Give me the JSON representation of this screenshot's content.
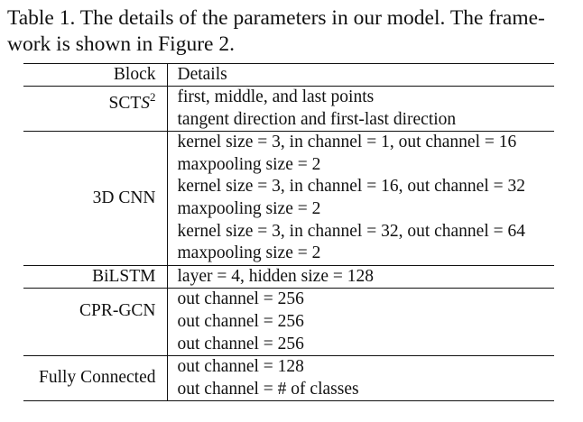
{
  "caption": {
    "line1": "Table 1. The details of the parameters in our model. The frame-",
    "line2": "work is shown in Figure 2."
  },
  "header": {
    "block": "Block",
    "details": "Details"
  },
  "rows": [
    {
      "block_prefix": "SCT",
      "block_italic": "S",
      "block_sup": "2",
      "details": [
        "first, middle, and last points",
        "tangent direction and first-last direction"
      ]
    },
    {
      "block": "3D CNN",
      "details": [
        "kernel size = 3, in channel = 1, out channel = 16",
        "maxpooling size = 2",
        "kernel size = 3, in channel = 16, out channel = 32",
        "maxpooling size = 2",
        "kernel size = 3, in channel = 32, out channel = 64",
        "maxpooling size = 2"
      ]
    },
    {
      "block": "BiLSTM",
      "details": [
        "layer = 4, hidden size = 128"
      ]
    },
    {
      "block": "CPR-GCN",
      "details": [
        "out channel = 256",
        "out channel = 256",
        "out channel = 256"
      ]
    },
    {
      "block": "Fully Connected",
      "details": [
        "out channel = 128",
        "out channel = # of classes"
      ]
    }
  ]
}
